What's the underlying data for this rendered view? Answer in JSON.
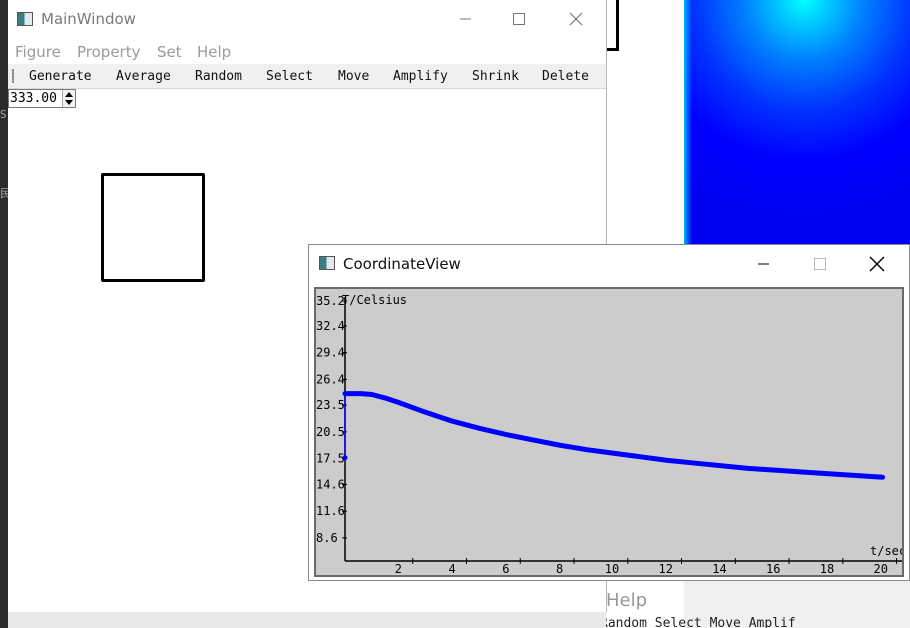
{
  "main_window": {
    "title": "MainWindow",
    "menu": [
      "Figure",
      "Property",
      "Set",
      "Help"
    ],
    "toolbar": [
      "Generate",
      "Average",
      "Random",
      "Select",
      "Move",
      "Amplify",
      "Shrink",
      "Delete"
    ],
    "spin_value": "333.00"
  },
  "coord_window": {
    "title": "CoordinateView"
  },
  "background": {
    "ghost_help": "Help",
    "ghost_toolbar": "Random   Select   Move   Amplif"
  },
  "chart_data": {
    "type": "line",
    "title": "",
    "xlabel": "t/sec",
    "ylabel": "T/Celsius",
    "xlim": [
      0,
      20.5
    ],
    "ylim": [
      6,
      35.2
    ],
    "x_ticks": [
      "2",
      "4",
      "6",
      "8",
      "10",
      "12",
      "14",
      "16",
      "18",
      "20"
    ],
    "y_ticks": [
      "35.2",
      "32.4",
      "29.4",
      "26.4",
      "23.5",
      "20.5",
      "17.5",
      "14.6",
      "11.6",
      "8.6"
    ],
    "series": [
      {
        "color": "#0000ff",
        "x": [
          0,
          0.3,
          0.6,
          1,
          1.5,
          2,
          3,
          4,
          5,
          6,
          7,
          8,
          9,
          10,
          11,
          12,
          13,
          14,
          15,
          16,
          17,
          18,
          19,
          20
        ],
        "y": [
          24.8,
          24.8,
          24.8,
          24.7,
          24.3,
          23.8,
          22.7,
          21.7,
          20.9,
          20.2,
          19.6,
          19.0,
          18.5,
          18.1,
          17.7,
          17.3,
          17.0,
          16.7,
          16.4,
          16.2,
          16.0,
          15.8,
          15.6,
          15.4
        ]
      }
    ],
    "initial_point": {
      "x": 0,
      "y": 17.6
    },
    "grid": false,
    "legend": "none"
  }
}
